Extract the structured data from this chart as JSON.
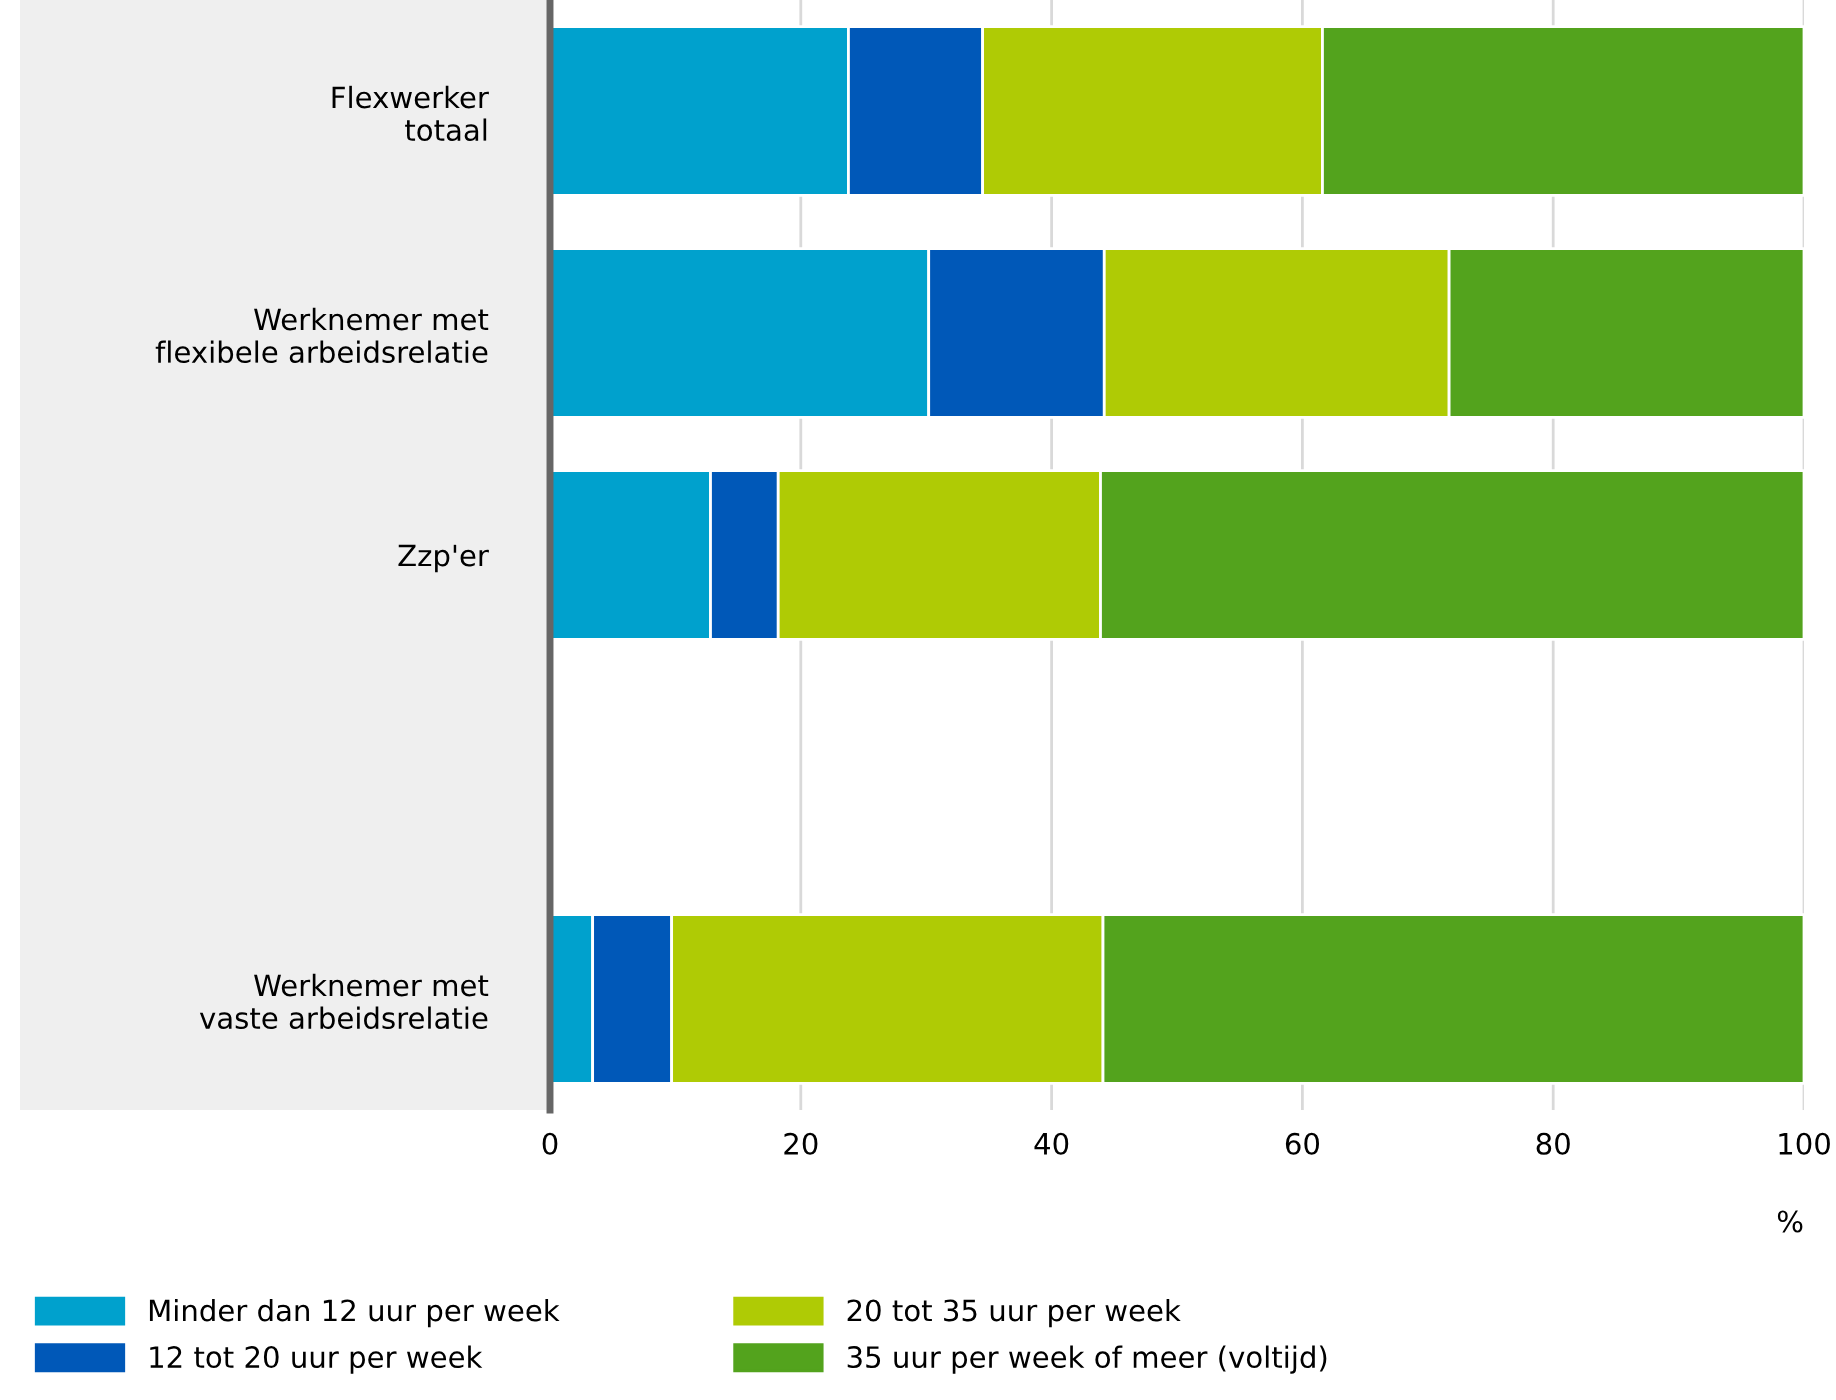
{
  "chart_data": {
    "type": "bar",
    "orientation": "horizontal",
    "stacked": true,
    "categories": [
      "Flexwerker\ntotaal",
      "Werknemer met\nflexibele arbeidsrelatie",
      "Zzp'er",
      null,
      "Werknemer met\nvaste arbeidsrelatie"
    ],
    "series": [
      {
        "name": "Minder dan 12 uur per week",
        "color": "#00a1cd",
        "values": [
          23.8,
          30.2,
          12.8,
          null,
          3.4
        ]
      },
      {
        "name": "12 tot 20 uur per week",
        "color": "#0058b8",
        "values": [
          10.7,
          14.0,
          5.4,
          null,
          6.3
        ]
      },
      {
        "name": "20 tot 35 uur per week",
        "color": "#afcb05",
        "values": [
          27.1,
          27.5,
          25.7,
          null,
          34.4
        ]
      },
      {
        "name": "35 uur per week of meer (voltijd)",
        "color": "#53a31d",
        "values": [
          38.4,
          28.3,
          56.1,
          null,
          55.9
        ]
      }
    ],
    "xlabel": "%",
    "xlim": [
      0,
      100
    ],
    "xticks": [
      0,
      20,
      40,
      60,
      80,
      100
    ],
    "grid": "x",
    "legend": "bottom"
  }
}
